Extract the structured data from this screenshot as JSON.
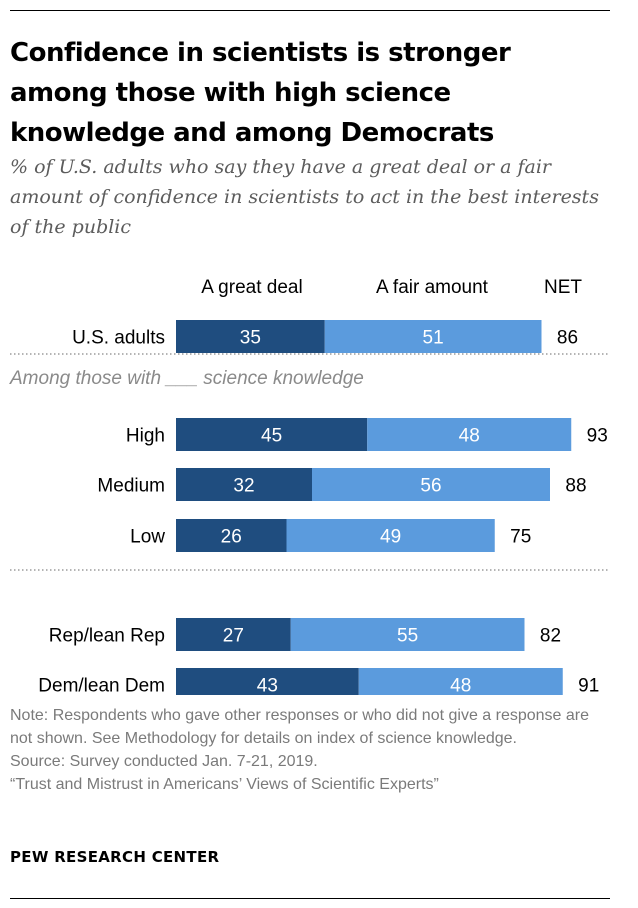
{
  "title": "Confidence in scientists is stronger among those with high science knowledge and among Democrats",
  "subtitle": "% of U.S. adults who say they have a great deal or a fair amount of confidence in scientists to act in the best interests of the public",
  "colors": {
    "great_deal": "#1f4d7f",
    "fair_amount": "#5b9bdd",
    "dotted": "#888888"
  },
  "chart_data": {
    "type": "bar",
    "orientation": "horizontal",
    "stacked": true,
    "legend": [
      "A great deal",
      "A fair amount",
      "NET"
    ],
    "section_label": "Among those with ___ science knowledge",
    "categories": [
      "U.S. adults",
      "High",
      "Medium",
      "Low",
      "Rep/lean Rep",
      "Dem/lean Dem"
    ],
    "series": [
      {
        "name": "A great deal",
        "values": [
          35,
          45,
          32,
          26,
          27,
          43
        ]
      },
      {
        "name": "A fair amount",
        "values": [
          51,
          48,
          56,
          49,
          55,
          48
        ]
      }
    ],
    "net": [
      86,
      93,
      88,
      75,
      82,
      91
    ],
    "xlim": [
      0,
      100
    ]
  },
  "notes": {
    "note": "Note: Respondents who gave other responses or who did not give a response are not shown. See Methodology for details on index of science knowledge.",
    "source": "Source: Survey conducted Jan. 7-21, 2019.",
    "report": "“Trust and Mistrust in Americans’ Views of Scientific Experts”"
  },
  "brand": "PEW RESEARCH CENTER"
}
